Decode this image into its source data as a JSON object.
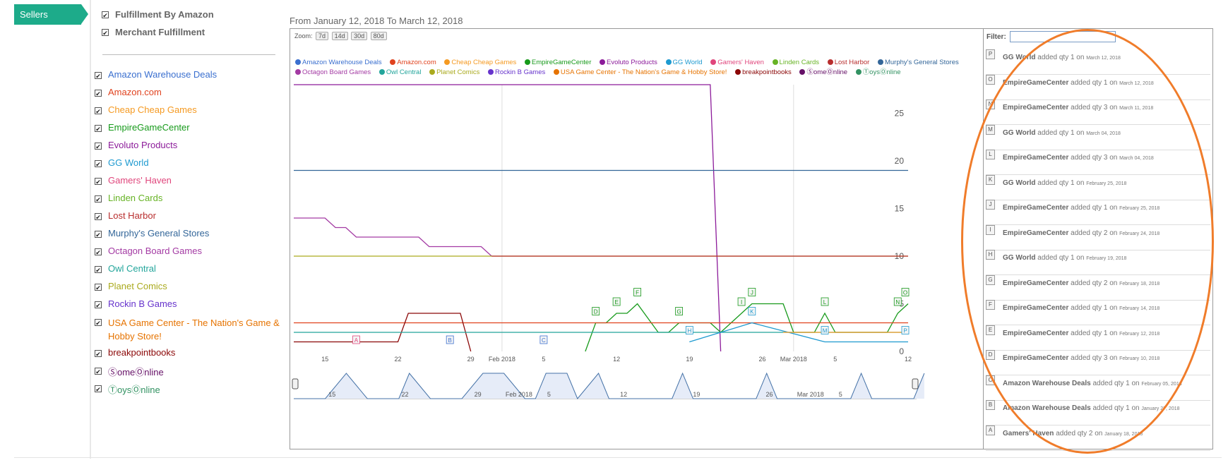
{
  "nav": {
    "sellers_tab": "Sellers"
  },
  "fulfillment": [
    {
      "label": "Fulfillment By Amazon",
      "checked": true
    },
    {
      "label": "Merchant Fulfillment",
      "checked": true
    }
  ],
  "sellers": [
    {
      "name": "Amazon Warehouse Deals",
      "color": "#3a6fcf"
    },
    {
      "name": "Amazon.com",
      "color": "#e0421e"
    },
    {
      "name": "Cheap Cheap Games",
      "color": "#f59a22"
    },
    {
      "name": "EmpireGameCenter",
      "color": "#179a1b"
    },
    {
      "name": "Evoluto Products",
      "color": "#8c1b9a"
    },
    {
      "name": "GG World",
      "color": "#1e9ad0"
    },
    {
      "name": "Gamers' Haven",
      "color": "#e0467c"
    },
    {
      "name": "Linden Cards",
      "color": "#67b325"
    },
    {
      "name": "Lost Harbor",
      "color": "#b82e2e"
    },
    {
      "name": "Murphy's General Stores",
      "color": "#336699"
    },
    {
      "name": "Octagon Board Games",
      "color": "#a33aa3"
    },
    {
      "name": "Owl Central",
      "color": "#22a59b"
    },
    {
      "name": "Planet Comics",
      "color": "#aaaa1e"
    },
    {
      "name": "Rockin B Games",
      "color": "#6633cc"
    },
    {
      "name": "USA Game Center - The Nation's Game & Hobby Store!",
      "color": "#e67300"
    },
    {
      "name": "breakpointbooks",
      "color": "#8b0707"
    },
    {
      "name": "ⓈomeⓄnline",
      "color": "#651067"
    },
    {
      "name": "ⓉoysⓄnline",
      "color": "#329262"
    }
  ],
  "chart": {
    "date_range": "From January 12, 2018 To March 12, 2018",
    "zoom_label": "Zoom:",
    "zoom_buttons": [
      "7d",
      "14d",
      "30d",
      "80d"
    ],
    "y_ticks": [
      "25",
      "20",
      "15",
      "10",
      "5",
      "0"
    ],
    "x_ticks": [
      "15",
      "22",
      "29",
      "Feb 2018",
      "5",
      "12",
      "19",
      "26",
      "Mar 2018",
      "5",
      "12"
    ],
    "nav_x_ticks": [
      "15",
      "22",
      "29",
      "Feb 2018",
      "5",
      "12",
      "19",
      "26",
      "Mar 2018",
      "5"
    ],
    "flags": [
      "A",
      "B",
      "C",
      "D",
      "E",
      "F",
      "G",
      "H",
      "I",
      "J",
      "K",
      "L",
      "M",
      "N",
      "O",
      "P"
    ]
  },
  "chart_data": {
    "type": "line",
    "title": "From January 12, 2018 To March 12, 2018",
    "xlabel": "",
    "ylabel": "",
    "x_range": [
      "2018-01-12",
      "2018-03-12"
    ],
    "ylim": [
      0,
      28
    ],
    "series": [
      {
        "name": "Evoluto Products",
        "points": [
          [
            "2018-01-12",
            28
          ],
          [
            "2018-02-21",
            28
          ],
          [
            "2018-02-22",
            0
          ]
        ]
      },
      {
        "name": "Murphy's General Stores",
        "points": [
          [
            "2018-01-12",
            19
          ],
          [
            "2018-03-12",
            19
          ]
        ]
      },
      {
        "name": "Octagon Board Games",
        "points": [
          [
            "2018-01-12",
            14
          ],
          [
            "2018-01-15",
            14
          ],
          [
            "2018-01-16",
            13
          ],
          [
            "2018-01-17",
            13
          ],
          [
            "2018-01-18",
            12
          ],
          [
            "2018-01-24",
            12
          ],
          [
            "2018-01-25",
            11
          ],
          [
            "2018-01-30",
            11
          ],
          [
            "2018-01-31",
            10
          ]
        ]
      },
      {
        "name": "Planet Comics",
        "points": [
          [
            "2018-01-12",
            10
          ],
          [
            "2018-03-12",
            10
          ]
        ]
      },
      {
        "name": "Lost Harbor",
        "points": [
          [
            "2018-01-31",
            10
          ],
          [
            "2018-03-12",
            10
          ]
        ]
      },
      {
        "name": "EmpireGameCenter",
        "points": [
          [
            "2018-02-09",
            0
          ],
          [
            "2018-02-10",
            3
          ],
          [
            "2018-02-11",
            3
          ],
          [
            "2018-02-12",
            4
          ],
          [
            "2018-02-13",
            4
          ],
          [
            "2018-02-14",
            5
          ],
          [
            "2018-02-16",
            2
          ],
          [
            "2018-02-17",
            2
          ],
          [
            "2018-02-18",
            3
          ],
          [
            "2018-02-21",
            3
          ],
          [
            "2018-02-22",
            2
          ],
          [
            "2018-02-24",
            4
          ],
          [
            "2018-02-25",
            5
          ],
          [
            "2018-02-28",
            5
          ],
          [
            "2018-03-01",
            2
          ],
          [
            "2018-03-03",
            2
          ],
          [
            "2018-03-04",
            4
          ],
          [
            "2018-03-05",
            2
          ],
          [
            "2018-03-10",
            2
          ],
          [
            "2018-03-11",
            4
          ],
          [
            "2018-03-12",
            5
          ]
        ]
      },
      {
        "name": "Amazon.com",
        "points": [
          [
            "2018-01-12",
            3
          ],
          [
            "2018-03-12",
            3
          ]
        ]
      },
      {
        "name": "breakpointbooks",
        "points": [
          [
            "2018-01-12",
            1
          ],
          [
            "2018-01-22",
            1
          ],
          [
            "2018-01-23",
            4
          ],
          [
            "2018-01-28",
            4
          ],
          [
            "2018-01-29",
            0
          ]
        ]
      },
      {
        "name": "Owl Central",
        "points": [
          [
            "2018-01-12",
            2
          ],
          [
            "2018-03-12",
            2
          ]
        ]
      },
      {
        "name": "GG World",
        "points": [
          [
            "2018-02-19",
            1
          ],
          [
            "2018-02-25",
            3
          ],
          [
            "2018-03-04",
            1
          ],
          [
            "2018-03-12",
            1
          ]
        ]
      },
      {
        "name": "Cheap Cheap Games",
        "points": [
          [
            "2018-02-28",
            2
          ],
          [
            "2018-03-12",
            2
          ]
        ]
      }
    ],
    "annotations": [
      {
        "flag": "A",
        "date": "2018-01-18"
      },
      {
        "flag": "B",
        "date": "2018-01-27"
      },
      {
        "flag": "C",
        "date": "2018-02-05"
      },
      {
        "flag": "D",
        "date": "2018-02-10"
      },
      {
        "flag": "E",
        "date": "2018-02-12"
      },
      {
        "flag": "F",
        "date": "2018-02-14"
      },
      {
        "flag": "G",
        "date": "2018-02-18"
      },
      {
        "flag": "H",
        "date": "2018-02-19"
      },
      {
        "flag": "I",
        "date": "2018-02-24"
      },
      {
        "flag": "J",
        "date": "2018-02-25"
      },
      {
        "flag": "K",
        "date": "2018-02-25"
      },
      {
        "flag": "L",
        "date": "2018-03-04"
      },
      {
        "flag": "M",
        "date": "2018-03-04"
      },
      {
        "flag": "N",
        "date": "2018-03-11"
      },
      {
        "flag": "O",
        "date": "2018-03-12"
      },
      {
        "flag": "P",
        "date": "2018-03-12"
      }
    ]
  },
  "panel": {
    "filter_label": "Filter:",
    "events": [
      {
        "letter": "P",
        "seller": "GG World",
        "action": "added qty 1 on",
        "date": "March 12, 2018"
      },
      {
        "letter": "O",
        "seller": "EmpireGameCenter",
        "action": "added qty 1 on",
        "date": "March 12, 2018"
      },
      {
        "letter": "N",
        "seller": "EmpireGameCenter",
        "action": "added qty 3 on",
        "date": "March 11, 2018"
      },
      {
        "letter": "M",
        "seller": "GG World",
        "action": "added qty 1 on",
        "date": "March 04, 2018"
      },
      {
        "letter": "L",
        "seller": "EmpireGameCenter",
        "action": "added qty 3 on",
        "date": "March 04, 2018"
      },
      {
        "letter": "K",
        "seller": "GG World",
        "action": "added qty 1 on",
        "date": "February 25, 2018"
      },
      {
        "letter": "J",
        "seller": "EmpireGameCenter",
        "action": "added qty 1 on",
        "date": "February 25, 2018"
      },
      {
        "letter": "I",
        "seller": "EmpireGameCenter",
        "action": "added qty 2 on",
        "date": "February 24, 2018"
      },
      {
        "letter": "H",
        "seller": "GG World",
        "action": "added qty 1 on",
        "date": "February 19, 2018"
      },
      {
        "letter": "G",
        "seller": "EmpireGameCenter",
        "action": "added qty 2 on",
        "date": "February 18, 2018"
      },
      {
        "letter": "F",
        "seller": "EmpireGameCenter",
        "action": "added qty 1 on",
        "date": "February 14, 2018"
      },
      {
        "letter": "E",
        "seller": "EmpireGameCenter",
        "action": "added qty 1 on",
        "date": "February 12, 2018"
      },
      {
        "letter": "D",
        "seller": "EmpireGameCenter",
        "action": "added qty 3 on",
        "date": "February 10, 2018"
      },
      {
        "letter": "C",
        "seller": "Amazon Warehouse Deals",
        "action": "added qty 1 on",
        "date": "February 05, 2018"
      },
      {
        "letter": "B",
        "seller": "Amazon Warehouse Deals",
        "action": "added qty 1 on",
        "date": "January 27, 2018"
      },
      {
        "letter": "A",
        "seller": "Gamers' Haven",
        "action": "added qty 2 on",
        "date": "January 18, 2018"
      }
    ]
  },
  "highlight": {
    "color": "#f07c2a"
  }
}
